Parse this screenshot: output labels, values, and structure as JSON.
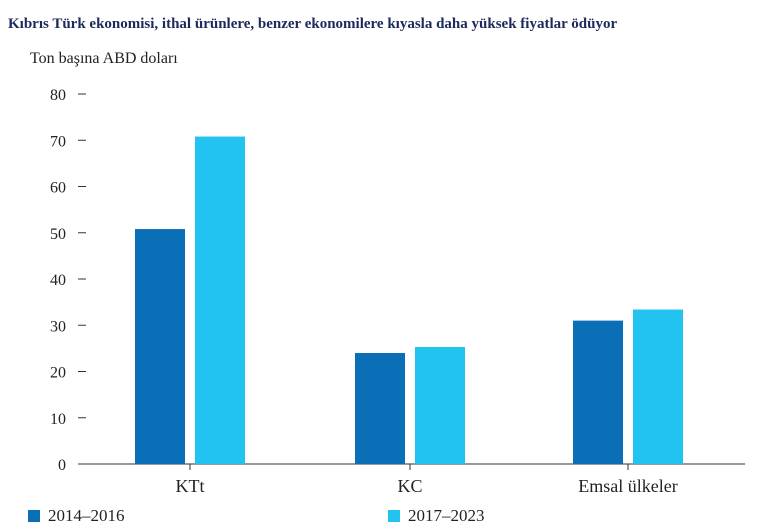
{
  "colors": {
    "series_1": "#0b6fb8",
    "series_2": "#22c3f0",
    "axis": "#333333"
  },
  "chart_data": {
    "type": "bar",
    "title": "Kıbrıs Türk ekonomisi, ithal ürünlere, benzer ekonomilere kıyasla daha yüksek fiyatlar ödüyor",
    "ylabel": "Ton başına ABD doları",
    "xlabel": "",
    "ylim": [
      0,
      80
    ],
    "yticks": [
      0,
      10,
      20,
      30,
      40,
      50,
      60,
      70,
      80
    ],
    "categories": [
      "KTt",
      "KC",
      "Emsal ülkeler"
    ],
    "series": [
      {
        "name": "2014–2016",
        "values": [
          50.8,
          24,
          31
        ]
      },
      {
        "name": "2017–2023",
        "values": [
          70.8,
          25.3,
          33.4
        ]
      }
    ],
    "legend": "bottom",
    "grid": false
  }
}
